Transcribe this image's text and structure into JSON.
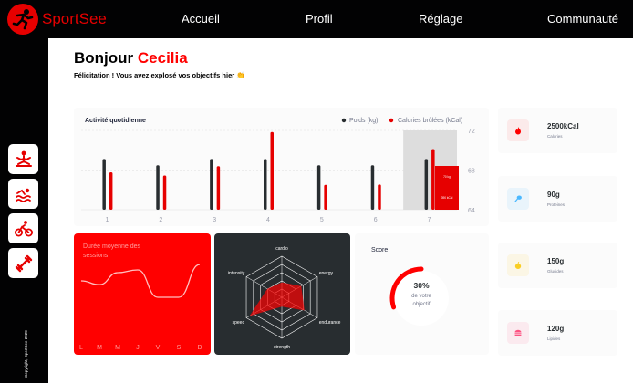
{
  "app": {
    "brand": "SportSee"
  },
  "nav": {
    "items": [
      "Accueil",
      "Profil",
      "Réglage",
      "Communauté"
    ]
  },
  "sidebar": {
    "icons": [
      "yoga-icon",
      "swim-icon",
      "bike-icon",
      "dumbbell-icon"
    ],
    "copyright": "Copyright, SportSee 2020"
  },
  "greeting": {
    "hello": "Bonjour",
    "name": "Cecilia",
    "message": "Félicitation ! Vous avez explosé vos objectifs hier 👏"
  },
  "colors": {
    "red": "#E60000",
    "dark": "#282D30",
    "black": "#020203"
  },
  "activity": {
    "title": "Activité quotidienne",
    "legend_weight": "Poids (kg)",
    "legend_calories": "Calories brûlées (kCal)",
    "tooltip_kg": "70 kg",
    "tooltip_kcal": "390 kCal"
  },
  "chart_data": [
    {
      "type": "bar",
      "title": "Activité quotidienne",
      "categories": [
        "1",
        "2",
        "3",
        "4",
        "5",
        "6",
        "7"
      ],
      "yticks": [
        "72",
        "68",
        "64"
      ],
      "ylim": [
        64,
        72
      ],
      "series": [
        {
          "name": "Poids (kg)",
          "values": [
            70,
            69,
            70,
            70,
            69,
            69,
            70
          ]
        },
        {
          "name": "Calories brûlées (kCal)",
          "values": [
            240,
            220,
            280,
            500,
            160,
            162,
            390
          ]
        }
      ],
      "grid": true,
      "legend": "top-right",
      "highlight_index": 6
    },
    {
      "type": "line",
      "title": "Durée moyenne des sessions",
      "categories": [
        "L",
        "M",
        "M",
        "J",
        "V",
        "S",
        "D"
      ],
      "values": [
        30,
        23,
        45,
        50,
        0,
        0,
        60
      ]
    },
    {
      "type": "radar",
      "axes": [
        "cardio",
        "energy",
        "endurance",
        "strength",
        "speed",
        "intensity"
      ],
      "values": [
        80,
        120,
        140,
        50,
        200,
        90
      ],
      "max": 220
    },
    {
      "type": "pie",
      "title": "Score",
      "value": 0.3,
      "label_value": "30%",
      "label_text1": "de votre",
      "label_text2": "objectif"
    }
  ],
  "keydata": [
    {
      "value": "2500kCal",
      "label": "Calories",
      "icon": "flame-icon",
      "bg": "#FBEAEA",
      "fg": "#FF0000"
    },
    {
      "value": "90g",
      "label": "Proteines",
      "icon": "chicken-icon",
      "bg": "#E9F4FB",
      "fg": "#4AB8FF"
    },
    {
      "value": "150g",
      "label": "Glucides",
      "icon": "apple-icon",
      "bg": "#FBF6E5",
      "fg": "#F9CE23"
    },
    {
      "value": "120g",
      "label": "Lipides",
      "icon": "burger-icon",
      "bg": "#FBEAEF",
      "fg": "#FD5181"
    }
  ]
}
